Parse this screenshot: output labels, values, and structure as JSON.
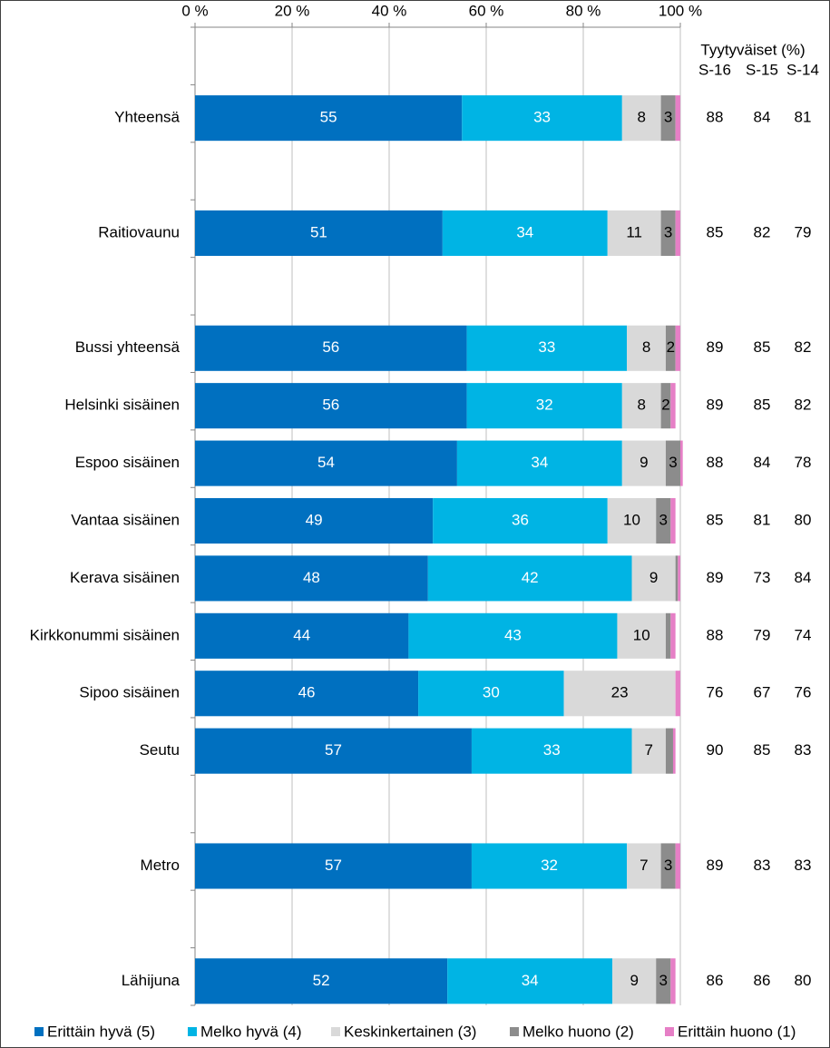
{
  "chart_data": {
    "type": "stacked-bar-horizontal",
    "categories": [
      null,
      "Yhteensä",
      null,
      "Raitiovaunu",
      null,
      "Bussi yhteensä",
      "Helsinki sisäinen",
      "Espoo sisäinen",
      "Vantaa sisäinen",
      "Kerava sisäinen",
      "Kirkkonummi sisäinen",
      "Sipoo sisäinen",
      "Seutu",
      null,
      "Metro",
      null,
      "Lähijuna"
    ],
    "series": [
      {
        "name": "Erittäin hyvä (5)",
        "color": "#0070c0",
        "values": [
          null,
          55,
          null,
          51,
          null,
          56,
          56,
          54,
          49,
          48,
          44,
          46,
          57,
          null,
          57,
          null,
          52
        ]
      },
      {
        "name": "Melko hyvä (4)",
        "color": "#00b4e4",
        "values": [
          null,
          33,
          null,
          34,
          null,
          33,
          32,
          34,
          36,
          42,
          43,
          30,
          33,
          null,
          32,
          null,
          34
        ]
      },
      {
        "name": "Keskinkertainen (3)",
        "color": "#d9d9d9",
        "values": [
          null,
          8,
          null,
          11,
          null,
          8,
          8,
          9,
          10,
          9,
          10,
          23,
          7,
          null,
          7,
          null,
          9
        ]
      },
      {
        "name": "Melko huono (2)",
        "color": "#8c8c8c",
        "values": [
          null,
          3,
          null,
          3,
          null,
          2,
          2,
          3,
          3,
          0.5,
          1,
          0,
          1.5,
          null,
          3,
          null,
          3
        ]
      },
      {
        "name": "Erittäin huono (1)",
        "color": "#e67fc6",
        "values": [
          null,
          1,
          null,
          1,
          null,
          1,
          1,
          0.5,
          1,
          0.5,
          1,
          1,
          0.5,
          null,
          1,
          null,
          1
        ]
      }
    ],
    "xlim": [
      0,
      100
    ],
    "xticks": [
      {
        "value": 0,
        "label": "0 %"
      },
      {
        "value": 20,
        "label": "20 %"
      },
      {
        "value": 40,
        "label": "40 %"
      },
      {
        "value": 60,
        "label": "60 %"
      },
      {
        "value": 80,
        "label": "80 %"
      },
      {
        "value": 100,
        "label": "100 %"
      }
    ],
    "grid": true,
    "legend": "bottom",
    "side_table": {
      "title": "Tyytyväiset (%)",
      "columns": [
        "S-16",
        "S-15",
        "S-14"
      ],
      "rows": [
        null,
        [
          88,
          84,
          81
        ],
        null,
        [
          85,
          82,
          79
        ],
        null,
        [
          89,
          85,
          82
        ],
        [
          89,
          85,
          82
        ],
        [
          88,
          84,
          78
        ],
        [
          85,
          81,
          80
        ],
        [
          89,
          73,
          84
        ],
        [
          88,
          79,
          74
        ],
        [
          76,
          67,
          76
        ],
        [
          90,
          85,
          83
        ],
        null,
        [
          89,
          83,
          83
        ],
        null,
        [
          86,
          86,
          80
        ]
      ]
    }
  }
}
